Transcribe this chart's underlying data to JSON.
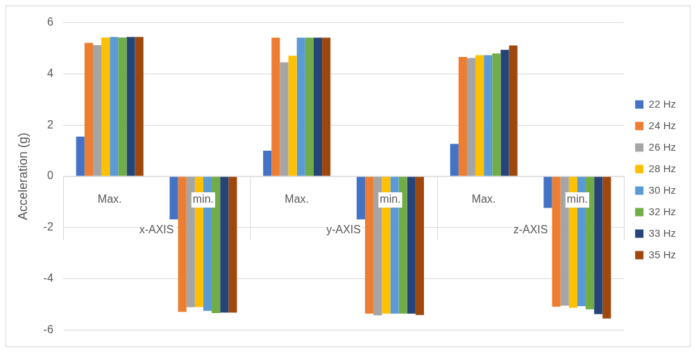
{
  "chart_data": {
    "type": "bar",
    "ylabel": "Acceleration (g)",
    "categories": [
      "Max.",
      "min.",
      "Max.",
      "min.",
      "Max.",
      "min."
    ],
    "annotations": [
      "x-AXIS",
      "y-AXIS",
      "z-AXIS"
    ],
    "series": [
      {
        "name": "22 Hz",
        "color": "#4472c4",
        "values": [
          1.55,
          -1.68,
          1.0,
          -1.68,
          1.27,
          -1.23
        ]
      },
      {
        "name": "24 Hz",
        "color": "#ed7d31",
        "values": [
          5.21,
          -5.29,
          5.41,
          -5.36,
          4.66,
          -5.09
        ]
      },
      {
        "name": "26 Hz",
        "color": "#a5a5a5",
        "values": [
          5.12,
          -5.11,
          4.45,
          -5.43,
          4.62,
          -5.05
        ]
      },
      {
        "name": "28 Hz",
        "color": "#ffc000",
        "values": [
          5.42,
          -5.1,
          4.71,
          -5.36,
          4.73,
          -5.13
        ]
      },
      {
        "name": "30 Hz",
        "color": "#5b9bd5",
        "values": [
          5.44,
          -5.25,
          5.41,
          -5.36,
          4.73,
          -5.07
        ]
      },
      {
        "name": "32 Hz",
        "color": "#70ad47",
        "values": [
          5.42,
          -5.34,
          5.41,
          -5.36,
          4.8,
          -5.19
        ]
      },
      {
        "name": "33 Hz",
        "color": "#264478",
        "values": [
          5.44,
          -5.32,
          5.41,
          -5.36,
          4.94,
          -5.38
        ]
      },
      {
        "name": "35 Hz",
        "color": "#9e480e",
        "values": [
          5.44,
          -5.32,
          5.41,
          -5.41,
          5.11,
          -5.55
        ]
      }
    ],
    "ylim": [
      -6,
      6
    ],
    "yticks": [
      -6,
      -4,
      -2,
      0,
      2,
      4,
      6
    ],
    "grid": "y",
    "legend": "right"
  }
}
